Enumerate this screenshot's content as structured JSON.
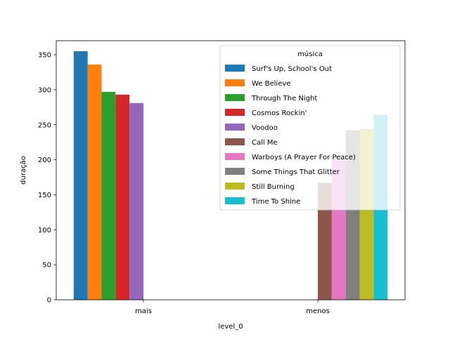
{
  "chart_data": {
    "type": "bar",
    "categories": [
      "mais",
      "menos"
    ],
    "xlabel": "level_0",
    "ylabel": "duração",
    "ylim": [
      0,
      370
    ],
    "yticks": [
      0,
      50,
      100,
      150,
      200,
      250,
      300,
      350
    ],
    "grid": false,
    "legend": {
      "title": "música",
      "placement": "top-right"
    },
    "series": [
      {
        "name": "Surf's Up, School's Out",
        "color": "#1f77b4",
        "values": [
          355,
          null
        ]
      },
      {
        "name": "We Believe",
        "color": "#ff7f0e",
        "values": [
          336,
          null
        ]
      },
      {
        "name": "Through The Night",
        "color": "#2ca02c",
        "values": [
          297,
          null
        ]
      },
      {
        "name": "Cosmos Rockin'",
        "color": "#d62728",
        "values": [
          293,
          null
        ]
      },
      {
        "name": "Voodoo",
        "color": "#9467bd",
        "values": [
          281,
          null
        ]
      },
      {
        "name": "Call Me",
        "color": "#8c564b",
        "values": [
          null,
          167
        ]
      },
      {
        "name": "Warboys (A Prayer For Peace)",
        "color": "#e377c2",
        "values": [
          null,
          202
        ]
      },
      {
        "name": "Some Things That Glitter",
        "color": "#7f7f7f",
        "values": [
          null,
          242
        ]
      },
      {
        "name": "Still Burning",
        "color": "#bcbd22",
        "values": [
          null,
          244
        ]
      },
      {
        "name": "Time To Shine",
        "color": "#17becf",
        "values": [
          null,
          264
        ]
      }
    ]
  }
}
